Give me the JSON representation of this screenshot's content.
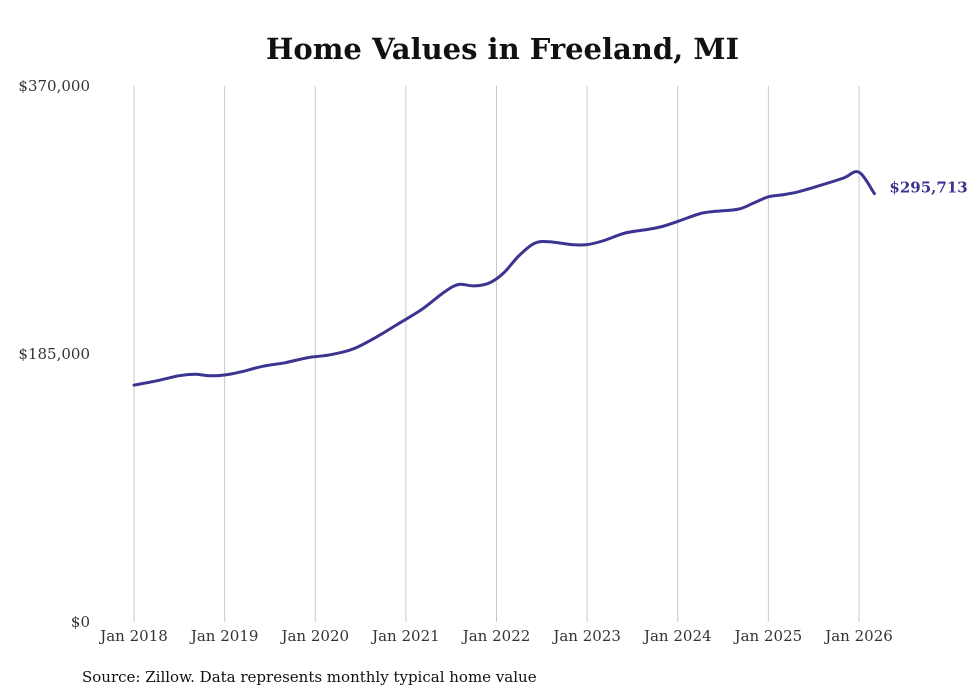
{
  "chart_data": {
    "type": "line",
    "title": "Home Values in Freeland, MI",
    "xlabel": "",
    "ylabel": "",
    "ylim": [
      0,
      370000
    ],
    "y_ticks": [
      {
        "value": 0,
        "label": "$0"
      },
      {
        "value": 185000,
        "label": "$185,000"
      },
      {
        "value": 370000,
        "label": "$370,000"
      }
    ],
    "x_ticks": [
      {
        "value": 2018,
        "label": "Jan 2018"
      },
      {
        "value": 2019,
        "label": "Jan 2019"
      },
      {
        "value": 2020,
        "label": "Jan 2020"
      },
      {
        "value": 2021,
        "label": "Jan 2021"
      },
      {
        "value": 2022,
        "label": "Jan 2022"
      },
      {
        "value": 2023,
        "label": "Jan 2023"
      },
      {
        "value": 2024,
        "label": "Jan 2024"
      },
      {
        "value": 2025,
        "label": "Jan 2025"
      },
      {
        "value": 2026,
        "label": "Jan 2026"
      }
    ],
    "xlim": [
      2018,
      2026.17
    ],
    "grid": "vertical",
    "series": [
      {
        "name": "Typical home value",
        "color": "#3b3491",
        "x": [
          2018.0,
          2018.25,
          2018.5,
          2018.67,
          2018.83,
          2019.0,
          2019.17,
          2019.42,
          2019.67,
          2019.92,
          2020.17,
          2020.42,
          2020.67,
          2020.92,
          2021.17,
          2021.42,
          2021.58,
          2021.75,
          2021.92,
          2022.08,
          2022.25,
          2022.42,
          2022.58,
          2022.83,
          2023.0,
          2023.17,
          2023.42,
          2023.67,
          2023.83,
          2024.0,
          2024.25,
          2024.42,
          2024.67,
          2024.83,
          2025.0,
          2025.17,
          2025.33,
          2025.58,
          2025.83,
          2026.0,
          2026.17
        ],
        "values": [
          163500,
          166500,
          170000,
          171000,
          170000,
          170500,
          172500,
          176500,
          179000,
          182500,
          184500,
          188500,
          196500,
          206000,
          215500,
          227500,
          233000,
          232000,
          234000,
          241000,
          253000,
          261500,
          262500,
          260500,
          260500,
          263000,
          268500,
          271000,
          273000,
          276500,
          282000,
          283500,
          285000,
          289000,
          293500,
          295000,
          297000,
          301500,
          306500,
          310500,
          295713
        ],
        "end_label": "$295,713"
      }
    ]
  },
  "source_note": "Source: Zillow. Data represents monthly typical home value"
}
